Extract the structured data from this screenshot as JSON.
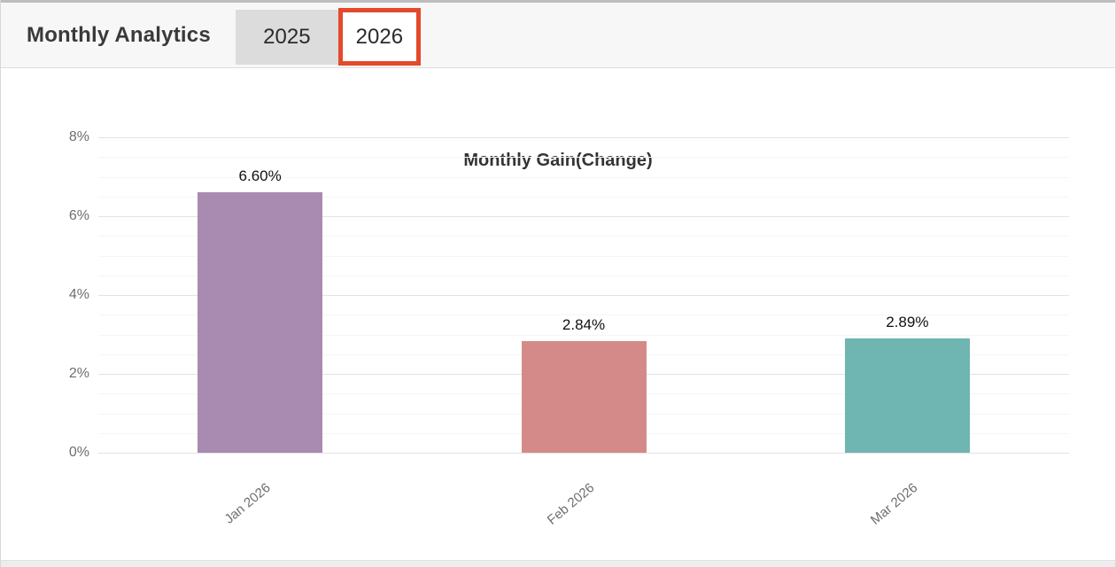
{
  "header": {
    "title": "Monthly Analytics",
    "year_tabs": [
      {
        "label": "2025",
        "selected": false
      },
      {
        "label": "2026",
        "selected": true
      }
    ]
  },
  "annotation": {
    "type": "highlight-box",
    "around": "2026",
    "color": "#e4492c"
  },
  "chart_data": {
    "type": "bar",
    "title": "Monthly Gain(Change)",
    "categories": [
      "Jan 2026",
      "Feb 2026",
      "Mar 2026"
    ],
    "values": [
      6.6,
      2.84,
      2.89
    ],
    "value_labels": [
      "6.60%",
      "2.84%",
      "2.89%"
    ],
    "bar_colors": [
      "#a98ab0",
      "#d58a8a",
      "#6fb5b1"
    ],
    "y_tick_labels": [
      "0%",
      "2%",
      "4%",
      "6%",
      "8%"
    ],
    "ylim": [
      0,
      8
    ],
    "y_major_step": 2,
    "y_minor_step": 0.5,
    "x_label_rotation_deg": -40,
    "grid": true,
    "legend": false,
    "xlabel": "",
    "ylabel": ""
  },
  "colors": {
    "header_bg": "#f7f7f7",
    "tab_inactive_bg": "#dcdcdc",
    "highlight_red": "#e4492c",
    "grid_major": "#e3e3e3",
    "grid_minor": "#f5f5f5",
    "axis_text": "#6e6e6e",
    "value_text": "#111111",
    "title_text": "#3a3a3a",
    "card_bg": "#ffffff",
    "page_strip_bg": "#ededed"
  }
}
